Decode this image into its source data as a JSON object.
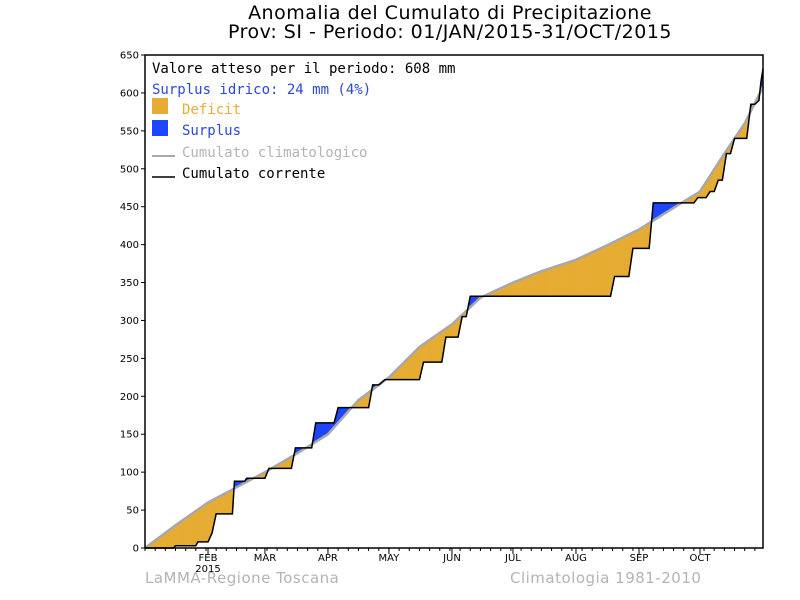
{
  "title": "Anomalia del Cumulato di Precipitazione",
  "subtitle": "Prov: SI - Periodo: 01/JAN/2015-31/OCT/2015",
  "footer_left": "LaMMA-Regione Toscana",
  "footer_right": "Climatologia 1981-2010",
  "colors": {
    "deficit": "#e6ac33",
    "surplus": "#1e46ff",
    "climatological": "#a8a8a8",
    "current": "#000000",
    "expected_text": "#000000",
    "surplus_text": "#2a4ad6",
    "deficit_text": "#e6ac33",
    "climatological_text": "#b4b4b4"
  },
  "chart_data": {
    "type": "area",
    "title": "Anomalia del Cumulato di Precipitazione",
    "subtitle": "Prov: SI - Periodo: 01/JAN/2015-31/OCT/2015",
    "xlabel": "",
    "ylabel": "",
    "xlim": [
      0,
      304
    ],
    "ylim": [
      0,
      650
    ],
    "yticks": [
      0,
      50,
      100,
      150,
      200,
      250,
      300,
      350,
      400,
      450,
      500,
      550,
      600,
      650
    ],
    "xticks": [
      {
        "label": "FEB",
        "day": 31
      },
      {
        "label": "MAR",
        "day": 59
      },
      {
        "label": "APR",
        "day": 90
      },
      {
        "label": "MAY",
        "day": 120
      },
      {
        "label": "JUN",
        "day": 151
      },
      {
        "label": "JUL",
        "day": 181
      },
      {
        "label": "AUG",
        "day": 212
      },
      {
        "label": "SEP",
        "day": 243
      },
      {
        "label": "OCT",
        "day": 273
      }
    ],
    "year_label": "2015",
    "legend": {
      "expected_text": "Valore atteso per il periodo: 608 mm",
      "surplus_text": "Surplus idrico: 24 mm (4%)",
      "items": [
        {
          "label": "Deficit",
          "type": "patch",
          "color": "deficit"
        },
        {
          "label": "Surplus",
          "type": "patch",
          "color": "surplus"
        },
        {
          "label": "Cumulato climatologico",
          "type": "line",
          "color": "climatological"
        },
        {
          "label": "Cumulato corrente",
          "type": "line",
          "color": "current"
        }
      ],
      "position": "top-left"
    },
    "series": [
      {
        "name": "Cumulato climatologico",
        "x": [
          0,
          15,
          31,
          45,
          59,
          75,
          90,
          105,
          120,
          135,
          151,
          165,
          181,
          195,
          212,
          228,
          243,
          258,
          273,
          285,
          295,
          304
        ],
        "y": [
          0,
          30,
          60,
          80,
          100,
          125,
          150,
          195,
          225,
          265,
          295,
          330,
          350,
          365,
          380,
          400,
          420,
          445,
          470,
          520,
          560,
          608
        ]
      },
      {
        "name": "Cumulato corrente",
        "x": [
          0,
          14,
          15,
          25,
          26,
          31,
          33,
          35,
          43,
          44,
          49,
          50,
          59,
          61,
          72,
          74,
          82,
          84,
          93,
          95,
          110,
          112,
          115,
          118,
          135,
          137,
          146,
          148,
          154,
          156,
          158,
          160,
          229,
          231,
          238,
          240,
          248,
          250,
          270,
          272,
          276,
          278,
          280,
          282,
          284,
          286,
          288,
          290,
          296,
          298,
          300,
          302,
          303,
          304
        ],
        "y": [
          0,
          0,
          3,
          3,
          8,
          8,
          20,
          45,
          45,
          88,
          88,
          92,
          92,
          105,
          105,
          132,
          132,
          165,
          165,
          185,
          185,
          215,
          215,
          222,
          222,
          245,
          245,
          278,
          278,
          305,
          305,
          332,
          332,
          358,
          358,
          395,
          395,
          455,
          455,
          462,
          462,
          470,
          470,
          485,
          485,
          520,
          520,
          540,
          540,
          585,
          585,
          590,
          615,
          632
        ]
      }
    ]
  }
}
